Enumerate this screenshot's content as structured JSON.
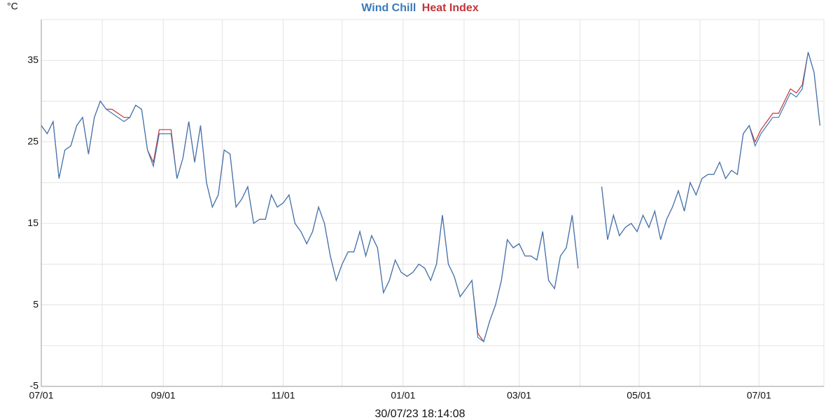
{
  "chart_data": {
    "type": "line",
    "title_parts": [
      "Wind Chill",
      "Heat Index"
    ],
    "y_label": "°C",
    "caption": "30/07/23 18:14:08",
    "x": [
      0,
      3,
      6,
      9,
      12,
      15,
      18,
      21,
      24,
      27,
      30,
      33,
      36,
      39,
      42,
      45,
      48,
      51,
      54,
      57,
      60,
      63,
      66,
      69,
      72,
      75,
      78,
      81,
      84,
      87,
      90,
      93,
      96,
      99,
      102,
      105,
      108,
      111,
      114,
      117,
      120,
      123,
      126,
      129,
      132,
      135,
      138,
      141,
      144,
      147,
      150,
      153,
      156,
      159,
      162,
      165,
      168,
      171,
      174,
      177,
      180,
      183,
      186,
      189,
      192,
      195,
      198,
      201,
      204,
      207,
      210,
      213,
      216,
      219,
      222,
      225,
      228,
      231,
      234,
      237,
      240,
      243,
      246,
      249,
      252,
      255,
      258,
      261,
      264,
      267,
      270,
      273,
      276,
      279,
      282,
      285,
      288,
      291,
      294,
      297,
      300,
      303,
      306,
      309,
      312,
      315,
      318,
      321,
      324,
      327,
      330,
      333,
      336,
      339,
      342,
      345,
      348,
      351,
      354,
      357,
      360,
      363,
      366,
      369,
      372,
      375,
      378,
      381,
      384,
      387,
      390,
      393,
      396
    ],
    "series": [
      {
        "name": "Wind Chill",
        "color": "#3a7ab8",
        "values": [
          27,
          26,
          27.5,
          20.5,
          24,
          24.5,
          27,
          28,
          23.5,
          28,
          30,
          29,
          28.5,
          28,
          27.5,
          28,
          29.5,
          29,
          24,
          22,
          26,
          26,
          26,
          20.5,
          23,
          27.5,
          22.5,
          27,
          20,
          17,
          18.5,
          24,
          23.5,
          17,
          18,
          19.5,
          15,
          15.5,
          15.5,
          18.5,
          17,
          17.5,
          18.5,
          15,
          14,
          12.5,
          14,
          17,
          15,
          11,
          8,
          10,
          11.5,
          11.5,
          14,
          11,
          13.5,
          12,
          6.5,
          8,
          10.5,
          9,
          8.5,
          9,
          10,
          9.5,
          8,
          10,
          16,
          10,
          8.5,
          6,
          7,
          8,
          1,
          0.5,
          3,
          5,
          8,
          13,
          12,
          12.5,
          11,
          11,
          10.5,
          14,
          8,
          7,
          11,
          12,
          16,
          9.5,
          null,
          null,
          null,
          19.5,
          13,
          16,
          13.5,
          14.5,
          15,
          14,
          16,
          14.5,
          16.5,
          13,
          15.5,
          17,
          19,
          16.5,
          20,
          18.5,
          20.5,
          21,
          21,
          22.5,
          20.5,
          21.5,
          21,
          26,
          27,
          24.5,
          26,
          27,
          28,
          28,
          29.5,
          31,
          30.5,
          31.5,
          36,
          33.5,
          27
        ]
      },
      {
        "name": "Heat Index",
        "color": "#c0363a",
        "values": [
          27,
          26,
          27.5,
          20.5,
          24,
          24.5,
          27,
          28,
          23.5,
          28,
          30,
          29,
          29,
          28.5,
          28,
          28,
          29.5,
          29,
          24,
          22.5,
          26.5,
          26.5,
          26.5,
          20.5,
          23,
          27.5,
          22.5,
          27,
          20,
          17,
          18.5,
          24,
          23.5,
          17,
          18,
          19.5,
          15,
          15.5,
          15.5,
          18.5,
          17,
          17.5,
          18.5,
          15,
          14,
          12.5,
          14,
          17,
          15,
          11,
          8,
          10,
          11.5,
          11.5,
          14,
          11,
          13.5,
          12,
          6.5,
          8,
          10.5,
          9,
          8.5,
          9,
          10,
          9.5,
          8,
          10,
          16,
          10,
          8.5,
          6,
          7,
          8,
          1.5,
          0.5,
          3,
          5,
          8,
          13,
          12,
          12.5,
          11,
          11,
          10.5,
          14,
          8,
          7,
          11,
          12,
          16,
          9.5,
          null,
          null,
          null,
          19.5,
          13,
          16,
          13.5,
          14.5,
          15,
          14,
          16,
          14.5,
          16.5,
          13,
          15.5,
          17,
          19,
          16.5,
          20,
          18.5,
          20.5,
          21,
          21,
          22.5,
          20.5,
          21.5,
          21,
          26,
          27,
          25,
          26.5,
          27.5,
          28.5,
          28.5,
          30,
          31.5,
          31,
          32,
          36,
          33.5,
          27
        ]
      }
    ],
    "xlim": [
      0,
      398
    ],
    "xticks": [
      {
        "value": 0,
        "label": "07/01"
      },
      {
        "value": 62,
        "label": "09/01"
      },
      {
        "value": 123,
        "label": "11/01"
      },
      {
        "value": 184,
        "label": "01/01"
      },
      {
        "value": 243,
        "label": "03/01"
      },
      {
        "value": 304,
        "label": "05/01"
      },
      {
        "value": 365,
        "label": "07/01"
      }
    ],
    "minor_xticks": [
      31,
      92,
      153,
      215,
      274,
      335
    ],
    "ylim": [
      -5,
      40
    ],
    "yticks": [
      -5,
      5,
      15,
      25,
      35
    ],
    "minor_yticks": [
      0,
      10,
      20,
      30,
      40
    ],
    "grid": true
  }
}
